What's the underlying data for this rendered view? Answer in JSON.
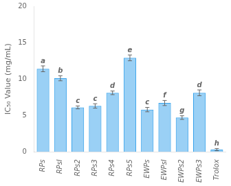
{
  "chart_data": {
    "type": "bar",
    "categories": [
      "RPs",
      "RPsI",
      "RPs2",
      "RPs3",
      "RPs4",
      "RPs5",
      "EWPs",
      "EWPsI",
      "EWPs2",
      "EWPs3",
      "Trolox"
    ],
    "values": [
      11.4,
      10.1,
      6.1,
      6.3,
      8.1,
      12.9,
      5.8,
      6.7,
      4.7,
      8.1,
      0.3
    ],
    "errors": [
      0.4,
      0.35,
      0.2,
      0.3,
      0.25,
      0.4,
      0.3,
      0.35,
      0.25,
      0.4,
      0.15
    ],
    "annotations": [
      "a",
      "b",
      "c",
      "c",
      "d",
      "e",
      "c",
      "f",
      "g",
      "d",
      "h"
    ],
    "ylabel": "IC₅₀ Value (mg/mL)",
    "ylim": [
      0,
      20
    ],
    "yticks": [
      0,
      5,
      10,
      15,
      20
    ],
    "grid": false
  }
}
